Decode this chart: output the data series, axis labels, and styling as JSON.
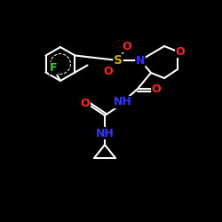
{
  "background": "#000000",
  "bond_color": "#ffffff",
  "atom_colors": {
    "F": "#33cc33",
    "O": "#ff2222",
    "S": "#ccaa00",
    "N": "#3333ff",
    "C": "#ffffff",
    "H": "#ffffff"
  },
  "bond_width": 1.5,
  "font_size_atom": 8.5,
  "fig_size": [
    2.5,
    2.5
  ],
  "dpi": 100
}
